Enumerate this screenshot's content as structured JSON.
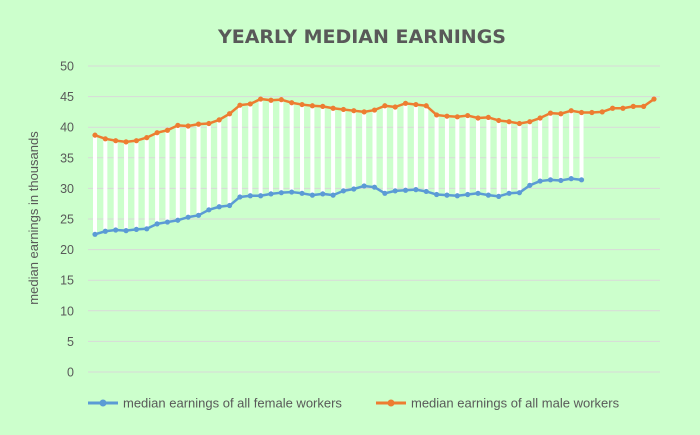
{
  "chart_data": {
    "type": "line",
    "title": "YEARLY MEDIAN EARNINGS",
    "xlabel": "",
    "ylabel": "median earnings in thousands",
    "ylim": [
      0,
      50
    ],
    "yticks": [
      0,
      5,
      10,
      15,
      20,
      25,
      30,
      35,
      40,
      45,
      50
    ],
    "grid": true,
    "legend": "bottom",
    "high_low_lines": true,
    "series": [
      {
        "name": "median earnings of all female workers",
        "color": "#5b9bd5",
        "values": [
          22.5,
          23.0,
          23.2,
          23.1,
          23.3,
          23.4,
          24.2,
          24.5,
          24.8,
          25.3,
          25.6,
          26.5,
          27.0,
          27.2,
          28.6,
          28.8,
          28.8,
          29.1,
          29.3,
          29.4,
          29.2,
          28.9,
          29.1,
          28.9,
          29.6,
          29.9,
          30.4,
          30.2,
          29.2,
          29.6,
          29.7,
          29.8,
          29.5,
          29.0,
          28.9,
          28.8,
          29.0,
          29.2,
          28.9,
          28.7,
          29.2,
          29.3,
          30.5,
          31.2,
          31.4,
          31.3,
          31.6,
          31.4
        ]
      },
      {
        "name": "median earnings of all male workers",
        "color": "#ed7d31",
        "values": [
          38.7,
          38.1,
          37.8,
          37.6,
          37.8,
          38.3,
          39.1,
          39.5,
          40.3,
          40.2,
          40.5,
          40.6,
          41.2,
          42.2,
          43.6,
          43.8,
          44.6,
          44.4,
          44.5,
          44.0,
          43.7,
          43.5,
          43.4,
          43.1,
          42.9,
          42.7,
          42.5,
          42.8,
          43.5,
          43.3,
          43.9,
          43.7,
          43.5,
          42.0,
          41.8,
          41.7,
          41.9,
          41.5,
          41.6,
          41.1,
          40.9,
          40.6,
          40.9,
          41.5,
          42.3,
          42.2,
          42.7,
          42.4,
          42.4,
          42.5,
          43.1,
          43.1,
          43.4,
          43.4,
          44.6
        ]
      }
    ]
  }
}
